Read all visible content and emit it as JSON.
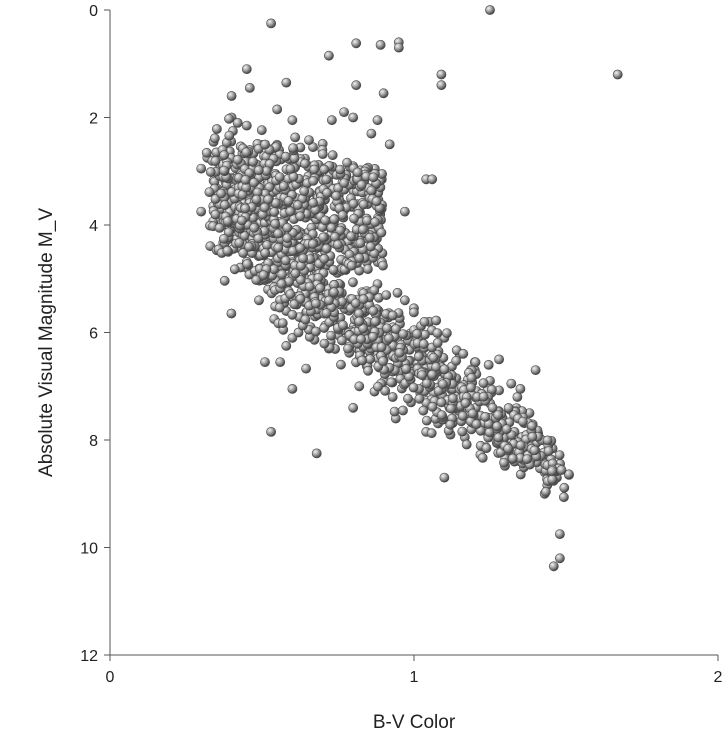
{
  "chart_data": {
    "type": "scatter",
    "title": "",
    "xlabel": "B-V Color",
    "ylabel": "Absolute Visual Magnitude M_V",
    "xlim": [
      0,
      2
    ],
    "ylim": [
      12,
      0
    ],
    "y_inverted": true,
    "grid": false,
    "legend": "none",
    "marker_color": "#8a8a8a",
    "marker_edge_color": "#4a4a4a",
    "x_ticks": [
      0,
      1,
      2
    ],
    "y_ticks": [
      0,
      2,
      4,
      6,
      8,
      10,
      12
    ],
    "x_tick_labels": [
      "0",
      "1",
      "2"
    ],
    "y_tick_labels": [
      "0",
      "2",
      "4",
      "6",
      "8",
      "10",
      "12"
    ],
    "point_count_approx": 1700,
    "main_sequence_ridge": [
      [
        0.3,
        3.0
      ],
      [
        0.4,
        3.6
      ],
      [
        0.5,
        4.2
      ],
      [
        0.6,
        4.8
      ],
      [
        0.7,
        5.3
      ],
      [
        0.8,
        5.8
      ],
      [
        0.9,
        6.2
      ],
      [
        1.0,
        6.6
      ],
      [
        1.1,
        7.0
      ],
      [
        1.2,
        7.35
      ],
      [
        1.3,
        7.8
      ],
      [
        1.4,
        8.2
      ],
      [
        1.5,
        8.6
      ]
    ],
    "subgiant_branch_ridge": [
      [
        0.55,
        2.6
      ],
      [
        0.65,
        2.9
      ],
      [
        0.75,
        3.1
      ],
      [
        0.85,
        3.3
      ],
      [
        0.92,
        3.6
      ]
    ],
    "points": [
      [
        0.53,
        0.25
      ],
      [
        1.25,
        0.0
      ],
      [
        0.72,
        0.85
      ],
      [
        0.81,
        0.62
      ],
      [
        0.89,
        0.65
      ],
      [
        0.95,
        0.6
      ],
      [
        0.95,
        0.7
      ],
      [
        1.09,
        1.2
      ],
      [
        1.09,
        1.4
      ],
      [
        1.67,
        1.2
      ],
      [
        0.45,
        1.1
      ],
      [
        0.46,
        1.45
      ],
      [
        0.58,
        1.35
      ],
      [
        0.4,
        1.6
      ],
      [
        0.81,
        1.4
      ],
      [
        0.9,
        1.55
      ],
      [
        0.4,
        2.0
      ],
      [
        0.42,
        2.1
      ],
      [
        0.45,
        2.15
      ],
      [
        0.55,
        1.85
      ],
      [
        0.6,
        2.05
      ],
      [
        0.73,
        2.05
      ],
      [
        0.77,
        1.9
      ],
      [
        0.8,
        2.0
      ],
      [
        0.88,
        2.05
      ],
      [
        0.86,
        2.3
      ],
      [
        0.92,
        2.5
      ],
      [
        0.3,
        2.95
      ],
      [
        0.32,
        2.75
      ],
      [
        0.3,
        3.75
      ],
      [
        1.04,
        3.15
      ],
      [
        1.06,
        3.15
      ],
      [
        0.97,
        3.75
      ],
      [
        0.38,
        3.2
      ],
      [
        0.41,
        3.5
      ],
      [
        0.44,
        3.9
      ],
      [
        0.46,
        4.2
      ],
      [
        0.48,
        4.5
      ],
      [
        0.5,
        4.8
      ],
      [
        0.52,
        5.0
      ],
      [
        0.45,
        4.8
      ],
      [
        0.49,
        5.4
      ],
      [
        0.52,
        5.2
      ],
      [
        0.56,
        5.4
      ],
      [
        0.58,
        5.6
      ],
      [
        0.54,
        5.75
      ],
      [
        0.57,
        5.95
      ],
      [
        0.6,
        6.1
      ],
      [
        0.58,
        6.25
      ],
      [
        0.56,
        6.55
      ],
      [
        0.51,
        6.55
      ],
      [
        0.6,
        7.05
      ],
      [
        0.53,
        7.85
      ],
      [
        0.68,
        8.25
      ],
      [
        0.62,
        6.0
      ],
      [
        0.66,
        5.9
      ],
      [
        0.72,
        6.3
      ],
      [
        0.76,
        6.6
      ],
      [
        0.82,
        7.0
      ],
      [
        0.8,
        7.4
      ],
      [
        0.87,
        7.1
      ],
      [
        0.94,
        7.6
      ],
      [
        0.93,
        7.2
      ],
      [
        0.99,
        7.3
      ],
      [
        1.04,
        7.85
      ],
      [
        1.1,
        8.7
      ],
      [
        1.12,
        7.9
      ],
      [
        1.16,
        7.5
      ],
      [
        1.22,
        7.6
      ],
      [
        1.25,
        7.9
      ],
      [
        1.3,
        8.35
      ],
      [
        1.33,
        8.2
      ],
      [
        1.35,
        8.4
      ],
      [
        1.37,
        8.1
      ],
      [
        1.4,
        8.4
      ],
      [
        1.43,
        8.6
      ],
      [
        1.45,
        8.5
      ],
      [
        1.47,
        8.7
      ],
      [
        1.48,
        8.55
      ],
      [
        1.51,
        8.65
      ],
      [
        1.43,
        9.0
      ],
      [
        1.46,
        10.35
      ],
      [
        1.48,
        10.2
      ],
      [
        1.48,
        9.75
      ],
      [
        1.4,
        6.7
      ],
      [
        1.38,
        7.5
      ],
      [
        1.34,
        7.2
      ],
      [
        1.28,
        6.5
      ],
      [
        1.25,
        6.9
      ],
      [
        1.32,
        6.95
      ],
      [
        1.35,
        7.05
      ],
      [
        1.2,
        6.55
      ],
      [
        0.97,
        5.4
      ],
      [
        1.0,
        5.55
      ],
      [
        1.05,
        5.8
      ],
      [
        1.1,
        6.1
      ],
      [
        1.15,
        6.4
      ],
      [
        1.2,
        6.7
      ],
      [
        0.82,
        4.85
      ],
      [
        0.88,
        5.1
      ]
    ]
  }
}
